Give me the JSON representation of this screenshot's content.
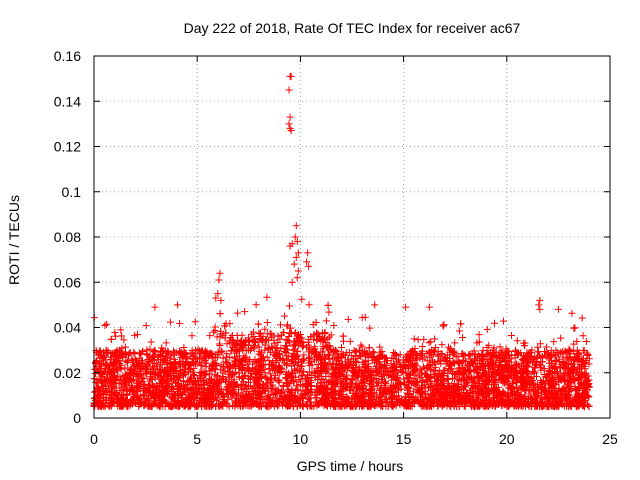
{
  "chart_data": {
    "type": "scatter",
    "title": "Day 222 of 2018, Rate Of TEC Index for receiver ac67",
    "xlabel": "GPS time / hours",
    "ylabel": "ROTI / TECUs",
    "xlim": [
      0,
      25
    ],
    "ylim": [
      0,
      0.16
    ],
    "grid": true,
    "marker": "+",
    "color": "#ff0000",
    "x_ticks": [
      0,
      5,
      10,
      15,
      20,
      25
    ],
    "x_tick_labels": [
      "0",
      "5",
      "10",
      "15",
      "20",
      "25"
    ],
    "y_ticks": [
      0,
      0.02,
      0.04,
      0.06,
      0.08,
      0.1,
      0.12,
      0.14,
      0.16
    ],
    "y_tick_labels": [
      "0",
      "0.02",
      "0.04",
      "0.06",
      "0.08",
      "0.1",
      "0.12",
      "0.14",
      "0.16"
    ],
    "x_range_of_data": [
      0,
      24
    ],
    "baseline_band": [
      0.005,
      0.03
    ],
    "notable_points": [
      {
        "x": 9.5,
        "y": 0.151
      },
      {
        "x": 9.55,
        "y": 0.151
      },
      {
        "x": 9.45,
        "y": 0.145
      },
      {
        "x": 9.5,
        "y": 0.133
      },
      {
        "x": 9.45,
        "y": 0.13
      },
      {
        "x": 9.5,
        "y": 0.128
      },
      {
        "x": 9.55,
        "y": 0.127
      },
      {
        "x": 9.5,
        "y": 0.076
      },
      {
        "x": 9.6,
        "y": 0.077
      },
      {
        "x": 9.8,
        "y": 0.085
      },
      {
        "x": 9.75,
        "y": 0.08
      },
      {
        "x": 9.85,
        "y": 0.078
      },
      {
        "x": 9.9,
        "y": 0.073
      },
      {
        "x": 9.8,
        "y": 0.071
      },
      {
        "x": 9.7,
        "y": 0.068
      },
      {
        "x": 10.35,
        "y": 0.073
      },
      {
        "x": 10.3,
        "y": 0.069
      },
      {
        "x": 10.4,
        "y": 0.067
      },
      {
        "x": 9.9,
        "y": 0.065
      },
      {
        "x": 9.85,
        "y": 0.062
      },
      {
        "x": 9.6,
        "y": 0.06
      },
      {
        "x": 6.1,
        "y": 0.064
      },
      {
        "x": 6.05,
        "y": 0.061
      },
      {
        "x": 6.0,
        "y": 0.055
      },
      {
        "x": 5.9,
        "y": 0.053
      },
      {
        "x": 6.15,
        "y": 0.052
      },
      {
        "x": 4.05,
        "y": 0.05
      },
      {
        "x": 21.6,
        "y": 0.052
      },
      {
        "x": 21.55,
        "y": 0.05
      },
      {
        "x": 21.6,
        "y": 0.048
      },
      {
        "x": 22.5,
        "y": 0.048
      },
      {
        "x": 2.95,
        "y": 0.049
      },
      {
        "x": 15.1,
        "y": 0.049
      },
      {
        "x": 13.6,
        "y": 0.05
      },
      {
        "x": 16.25,
        "y": 0.049
      },
      {
        "x": 7.3,
        "y": 0.047
      }
    ]
  }
}
